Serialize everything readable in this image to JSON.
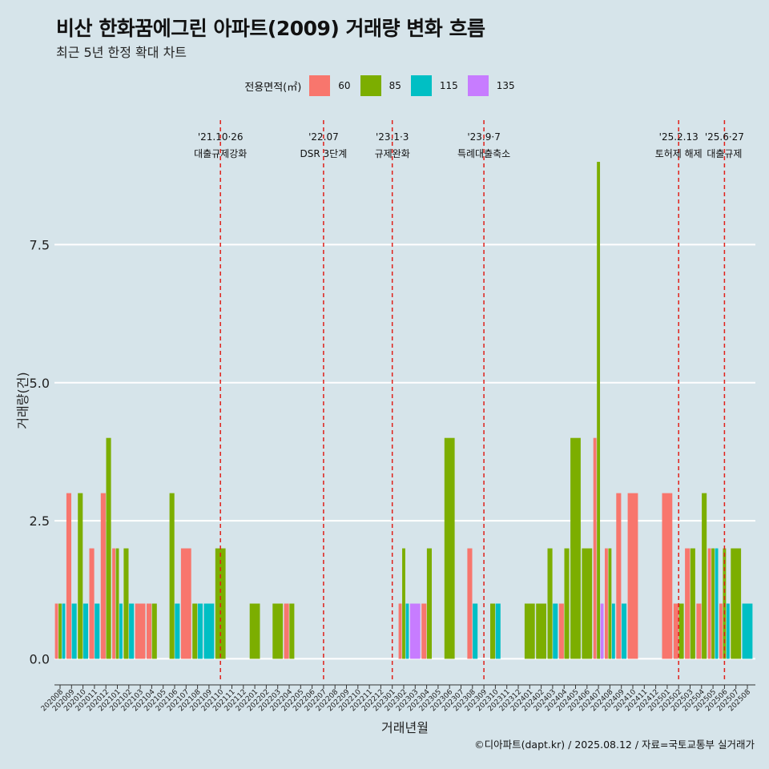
{
  "chart_data": {
    "type": "bar",
    "title": "비산 한화꿈에그린 아파트(2009) 거래량 변화 흐름",
    "subtitle": "최근 5년 한정 확대 차트",
    "xlabel": "거래년월",
    "ylabel": "거래량(건)",
    "ylim": [
      -0.4,
      9.9
    ],
    "yticks": [
      0.0,
      2.5,
      5.0,
      7.5
    ],
    "ytick_labels": [
      "0.0",
      "2.5",
      "5.0",
      "7.5"
    ],
    "legend_title": "전용면적(㎡)",
    "legend_position": "top",
    "grid": "horizontal",
    "caption": "©디아파트(dapt.kr) / 2025.08.12 / 자료=국토교통부 실거래가",
    "categories": [
      "202008",
      "202009",
      "202010",
      "202011",
      "202012",
      "202101",
      "202102",
      "202103",
      "202104",
      "202105",
      "202106",
      "202107",
      "202108",
      "202109",
      "202110",
      "202111",
      "202112",
      "202201",
      "202202",
      "202203",
      "202204",
      "202205",
      "202206",
      "202207",
      "202208",
      "202209",
      "202210",
      "202211",
      "202212",
      "202301",
      "202302",
      "202303",
      "202304",
      "202305",
      "202306",
      "202307",
      "202308",
      "202309",
      "202310",
      "202311",
      "202312",
      "202401",
      "202402",
      "202403",
      "202404",
      "202405",
      "202406",
      "202407",
      "202408",
      "202409",
      "202410",
      "202411",
      "202412",
      "202501",
      "202502",
      "202503",
      "202504",
      "202505",
      "202506",
      "202507",
      "202508"
    ],
    "series": [
      {
        "name": "60",
        "color": "#F8766D",
        "values": [
          1,
          3,
          0,
          2,
          3,
          2,
          0,
          1,
          1,
          0,
          0,
          2,
          0,
          0,
          0,
          0,
          0,
          0,
          0,
          0,
          1,
          0,
          0,
          0,
          0,
          0,
          0,
          0,
          0,
          0,
          1,
          0,
          1,
          0,
          0,
          0,
          2,
          0,
          0,
          0,
          0,
          0,
          0,
          0,
          1,
          0,
          0,
          4,
          2,
          3,
          3,
          0,
          0,
          3,
          1,
          2,
          1,
          2,
          1,
          0,
          0
        ]
      },
      {
        "name": "85",
        "color": "#7CAE00",
        "values": [
          1,
          0,
          3,
          0,
          4,
          2,
          2,
          0,
          1,
          0,
          3,
          0,
          1,
          0,
          2,
          0,
          0,
          1,
          0,
          1,
          1,
          0,
          0,
          0,
          0,
          0,
          0,
          0,
          0,
          0,
          2,
          0,
          2,
          0,
          4,
          0,
          0,
          0,
          1,
          0,
          0,
          1,
          1,
          2,
          2,
          4,
          2,
          9,
          2,
          0,
          0,
          0,
          0,
          0,
          1,
          2,
          3,
          2,
          2,
          2,
          0
        ]
      },
      {
        "name": "115",
        "color": "#00BFC4",
        "values": [
          1,
          1,
          1,
          1,
          0,
          1,
          1,
          0,
          0,
          0,
          1,
          0,
          1,
          1,
          0,
          0,
          0,
          0,
          0,
          0,
          0,
          0,
          0,
          0,
          0,
          0,
          0,
          0,
          0,
          0,
          1,
          0,
          0,
          0,
          0,
          0,
          1,
          0,
          1,
          0,
          0,
          0,
          0,
          1,
          0,
          0,
          0,
          0,
          1,
          1,
          0,
          0,
          0,
          0,
          0,
          0,
          0,
          2,
          1,
          0,
          1
        ]
      },
      {
        "name": "135",
        "color": "#C77CFF",
        "values": [
          0,
          0,
          0,
          0,
          0,
          0,
          0,
          0,
          0,
          0,
          0,
          0,
          0,
          0,
          0,
          0,
          0,
          0,
          0,
          0,
          0,
          0,
          0,
          0,
          0,
          0,
          0,
          0,
          0,
          0,
          0,
          1,
          0,
          0,
          0,
          0,
          0,
          0,
          0,
          0,
          0,
          0,
          0,
          0,
          0,
          0,
          0,
          1,
          0,
          0,
          0,
          0,
          0,
          0,
          0,
          0,
          0,
          0,
          0,
          0,
          0
        ]
      }
    ],
    "annotations": [
      {
        "at": "202110",
        "date": "'21.10·26",
        "label": "대출규제강화"
      },
      {
        "at": "202207",
        "date": "'22.07",
        "label": "DSR 3단계"
      },
      {
        "at": "202301",
        "date": "'23.1·3",
        "label": "규제완화"
      },
      {
        "at": "202309",
        "date": "'23.9·7",
        "label": "특례대출축소"
      },
      {
        "at": "202502",
        "date": "'25.2.13",
        "label": "토허제 해제"
      },
      {
        "at": "202506",
        "date": "'25.6·27",
        "label": "대출규제"
      }
    ],
    "annotation_line_color": "#e0201a"
  }
}
